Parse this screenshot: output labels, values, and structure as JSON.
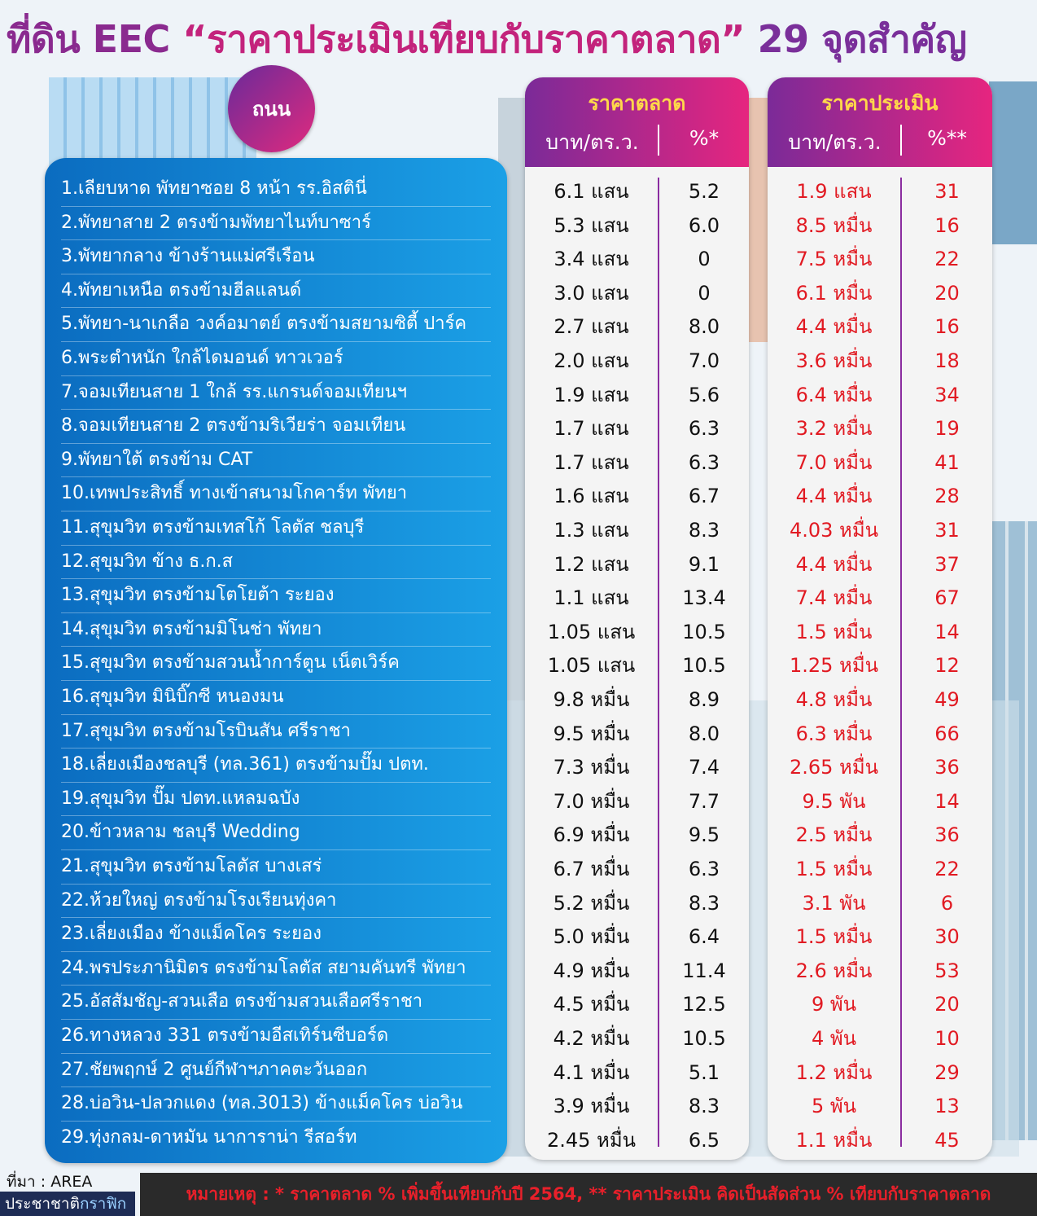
{
  "title": {
    "part1": "ที่ดิน EEC",
    "part2": "“ราคาประเมินเทียบกับราคาตลาด”",
    "part3": "29 จุดสำคัญ"
  },
  "road_label": "ถนน",
  "market": {
    "title": "ราคาตลาด",
    "unit": "บาท/ตร.ว.",
    "percent": "%*"
  },
  "assess": {
    "title": "ราคาประเมิน",
    "unit": "บาท/ตร.ว.",
    "percent": "%**"
  },
  "rows": [
    {
      "road": "1.เลียบหาด พัทยาซอย 8 หน้า รร.อิสตินี่",
      "market_price": "6.1 แสน",
      "market_pct": "5.2",
      "assess_price": "1.9 แสน",
      "assess_pct": "31"
    },
    {
      "road": "2.พัทยาสาย 2 ตรงข้ามพัทยาไนท์บาซาร์",
      "market_price": "5.3 แสน",
      "market_pct": "6.0",
      "assess_price": "8.5 หมื่น",
      "assess_pct": "16"
    },
    {
      "road": "3.พัทยากลาง ข้างร้านแม่ศรีเรือน",
      "market_price": "3.4 แสน",
      "market_pct": "0",
      "assess_price": "7.5 หมื่น",
      "assess_pct": "22"
    },
    {
      "road": "4.พัทยาเหนือ ตรงข้ามฮีลแลนด์",
      "market_price": "3.0 แสน",
      "market_pct": "0",
      "assess_price": "6.1 หมื่น",
      "assess_pct": "20"
    },
    {
      "road": "5.พัทยา-นาเกลือ วงค์อมาตย์ ตรงข้ามสยามซิตี้ ปาร์ค",
      "market_price": "2.7 แสน",
      "market_pct": "8.0",
      "assess_price": "4.4 หมื่น",
      "assess_pct": "16"
    },
    {
      "road": "6.พระตำหนัก ใกล้ไดมอนด์ ทาวเวอร์",
      "market_price": "2.0 แสน",
      "market_pct": "7.0",
      "assess_price": "3.6 หมื่น",
      "assess_pct": "18"
    },
    {
      "road": "7.จอมเทียนสาย 1 ใกล้ รร.แกรนด์จอมเทียนฯ",
      "market_price": "1.9 แสน",
      "market_pct": "5.6",
      "assess_price": "6.4 หมื่น",
      "assess_pct": "34"
    },
    {
      "road": "8.จอมเทียนสาย 2 ตรงข้ามริเวียร่า จอมเทียน",
      "market_price": "1.7 แสน",
      "market_pct": "6.3",
      "assess_price": "3.2 หมื่น",
      "assess_pct": "19"
    },
    {
      "road": "9.พัทยาใต้ ตรงข้าม CAT",
      "market_price": "1.7 แสน",
      "market_pct": "6.3",
      "assess_price": "7.0 หมื่น",
      "assess_pct": "41"
    },
    {
      "road": "10.เทพประสิทธิ์ ทางเข้าสนามโกคาร์ท พัทยา",
      "market_price": "1.6 แสน",
      "market_pct": "6.7",
      "assess_price": "4.4 หมื่น",
      "assess_pct": "28"
    },
    {
      "road": "11.สุขุมวิท ตรงข้ามเทสโก้ โลตัส ชลบุรี",
      "market_price": "1.3 แสน",
      "market_pct": "8.3",
      "assess_price": "4.03 หมื่น",
      "assess_pct": "31"
    },
    {
      "road": "12.สุขุมวิท ข้าง ธ.ก.ส",
      "market_price": "1.2 แสน",
      "market_pct": "9.1",
      "assess_price": "4.4 หมื่น",
      "assess_pct": "37"
    },
    {
      "road": "13.สุขุมวิท ตรงข้ามโตโยต้า ระยอง",
      "market_price": "1.1 แสน",
      "market_pct": "13.4",
      "assess_price": "7.4 หมื่น",
      "assess_pct": "67"
    },
    {
      "road": "14.สุขุมวิท ตรงข้ามมิโนช่า พัทยา",
      "market_price": "1.05 แสน",
      "market_pct": "10.5",
      "assess_price": "1.5 หมื่น",
      "assess_pct": "14"
    },
    {
      "road": "15.สุขุมวิท ตรงข้ามสวนน้ำการ์ตูน เน็ตเวิร์ค",
      "market_price": "1.05 แสน",
      "market_pct": "10.5",
      "assess_price": "1.25 หมื่น",
      "assess_pct": "12"
    },
    {
      "road": "16.สุขุมวิท มินิบิ๊กซี หนองมน",
      "market_price": "9.8 หมื่น",
      "market_pct": "8.9",
      "assess_price": "4.8 หมื่น",
      "assess_pct": "49"
    },
    {
      "road": "17.สุขุมวิท ตรงข้ามโรบินสัน ศรีราชา",
      "market_price": "9.5 หมื่น",
      "market_pct": "8.0",
      "assess_price": "6.3 หมื่น",
      "assess_pct": "66"
    },
    {
      "road": "18.เลี่ยงเมืองชลบุรี (ทล.361) ตรงข้ามปั๊ม ปตท.",
      "market_price": "7.3 หมื่น",
      "market_pct": "7.4",
      "assess_price": "2.65 หมื่น",
      "assess_pct": "36"
    },
    {
      "road": "19.สุขุมวิท ปั๊ม ปตท.แหลมฉบัง",
      "market_price": "7.0 หมื่น",
      "market_pct": "7.7",
      "assess_price": "9.5 พัน",
      "assess_pct": "14"
    },
    {
      "road": "20.ข้าวหลาม ชลบุรี Wedding",
      "market_price": "6.9 หมื่น",
      "market_pct": "9.5",
      "assess_price": "2.5 หมื่น",
      "assess_pct": "36"
    },
    {
      "road": "21.สุขุมวิท ตรงข้ามโลตัส บางเสร่",
      "market_price": "6.7 หมื่น",
      "market_pct": "6.3",
      "assess_price": "1.5 หมื่น",
      "assess_pct": "22"
    },
    {
      "road": "22.ห้วยใหญ่ ตรงข้ามโรงเรียนทุ่งคา",
      "market_price": "5.2 หมื่น",
      "market_pct": "8.3",
      "assess_price": "3.1 พัน",
      "assess_pct": "6"
    },
    {
      "road": "23.เลี่ยงเมือง ข้างแม็คโคร ระยอง",
      "market_price": "5.0 หมื่น",
      "market_pct": "6.4",
      "assess_price": "1.5 หมื่น",
      "assess_pct": "30"
    },
    {
      "road": "24.พรประภานิมิตร ตรงข้ามโลตัส สยามคันทรี พัทยา",
      "market_price": "4.9 หมื่น",
      "market_pct": "11.4",
      "assess_price": "2.6 หมื่น",
      "assess_pct": "53"
    },
    {
      "road": "25.อัสสัมชัญ-สวนเสือ ตรงข้ามสวนเสือศรีราชา",
      "market_price": "4.5 หมื่น",
      "market_pct": "12.5",
      "assess_price": "9 พัน",
      "assess_pct": "20"
    },
    {
      "road": "26.ทางหลวง 331 ตรงข้ามอีสเทิร์นซีบอร์ด",
      "market_price": "4.2 หมื่น",
      "market_pct": "10.5",
      "assess_price": "4 พัน",
      "assess_pct": "10"
    },
    {
      "road": "27.ชัยพฤกษ์ 2 ศูนย์กีฬาฯภาคตะวันออก",
      "market_price": "4.1 หมื่น",
      "market_pct": "5.1",
      "assess_price": "1.2 หมื่น",
      "assess_pct": "29"
    },
    {
      "road": "28.บ่อวิน-ปลวกแดง (ทล.3013) ข้างแม็คโคร บ่อวิน",
      "market_price": "3.9 หมื่น",
      "market_pct": "8.3",
      "assess_price": "5 พัน",
      "assess_pct": "13"
    },
    {
      "road": "29.ทุ่งกลม-ดาหมัน นาการาน่า รีสอร์ท",
      "market_price": "2.45 หมื่น",
      "market_pct": "6.5",
      "assess_price": "1.1 หมื่น",
      "assess_pct": "45"
    }
  ],
  "source": "ที่มา : AREA",
  "credit": {
    "part1": "ประชาชาติ",
    "part2": "กราฟิก"
  },
  "footnote": "หมายเหตุ :  * ราคาตลาด % เพิ่มขึ้นเทียบกับปี 2564, ** ราคาประเมิน คิดเป็นสัดส่วน % เทียบกับราคาตลาด"
}
